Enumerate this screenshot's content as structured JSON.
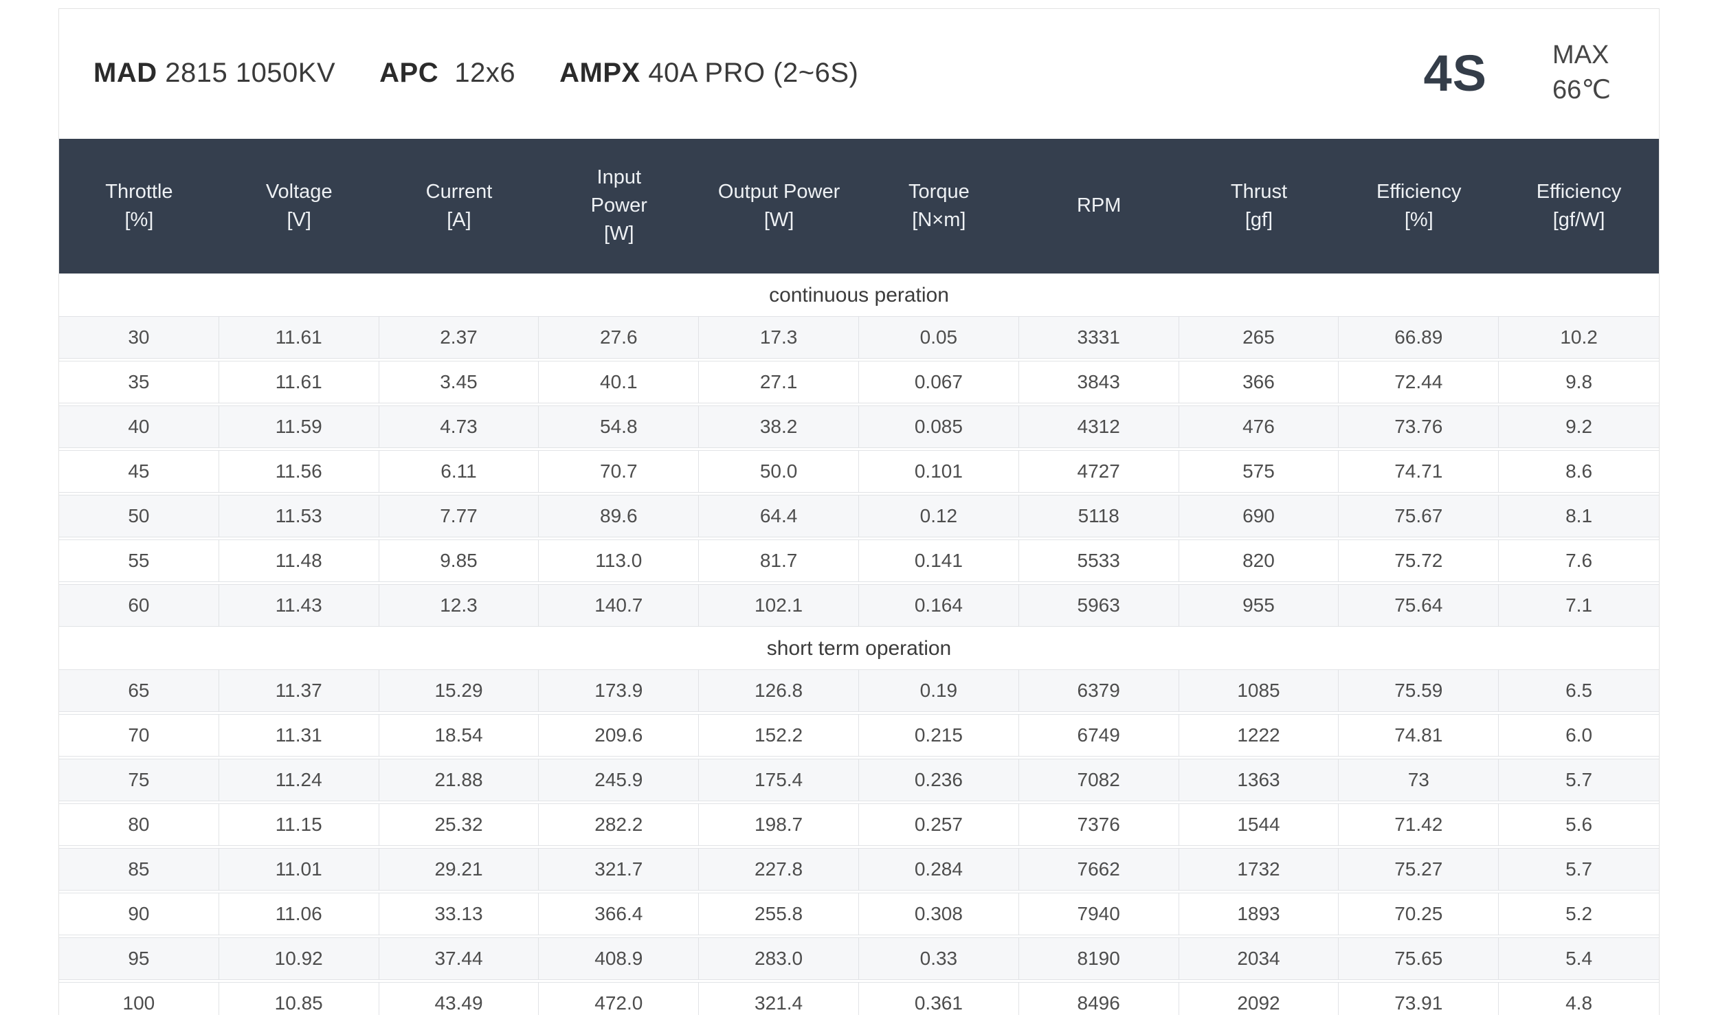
{
  "header": {
    "motor_brand": "MAD",
    "motor_model": "2815 1050KV",
    "prop_brand": "APC",
    "prop_model": "12x6",
    "esc_brand": "AMPX",
    "esc_model": "40A PRO (2~6S)",
    "battery": "4S",
    "max_label": "MAX",
    "max_temp": "66℃"
  },
  "table": {
    "columns": [
      {
        "label": "Throttle",
        "unit": "[%]"
      },
      {
        "label": "Voltage",
        "unit": "[V]"
      },
      {
        "label": "Current",
        "unit": "[A]"
      },
      {
        "label": "Input Power",
        "unit": "[W]"
      },
      {
        "label": "Output Power",
        "unit": "[W]"
      },
      {
        "label": "Torque",
        "unit": "[N×m]"
      },
      {
        "label": "RPM",
        "unit": ""
      },
      {
        "label": "Thrust",
        "unit": "[gf]"
      },
      {
        "label": "Efficiency",
        "unit": "[%]"
      },
      {
        "label": "Efficiency",
        "unit": "[gf/W]"
      }
    ]
  },
  "colors": {
    "table_header_bg": "#353f4e",
    "stripe_row_bg": "#f6f7f9",
    "border": "#e1e3e6"
  },
  "chart_data": {
    "type": "table",
    "title": "MAD 2815 1050KV / APC 12x6 / AMPX 40A PRO (2~6S) / 4S / MAX 66℃",
    "column_headers": [
      "Throttle [%]",
      "Voltage [V]",
      "Current [A]",
      "Input Power [W]",
      "Output Power [W]",
      "Torque [N×m]",
      "RPM",
      "Thrust [gf]",
      "Efficiency [%]",
      "Efficiency [gf/W]"
    ],
    "sections": [
      {
        "label": "continuous peration",
        "rows": [
          [
            "30",
            "11.61",
            "2.37",
            "27.6",
            "17.3",
            "0.05",
            "3331",
            "265",
            "66.89",
            "10.2"
          ],
          [
            "35",
            "11.61",
            "3.45",
            "40.1",
            "27.1",
            "0.067",
            "3843",
            "366",
            "72.44",
            "9.8"
          ],
          [
            "40",
            "11.59",
            "4.73",
            "54.8",
            "38.2",
            "0.085",
            "4312",
            "476",
            "73.76",
            "9.2"
          ],
          [
            "45",
            "11.56",
            "6.11",
            "70.7",
            "50.0",
            "0.101",
            "4727",
            "575",
            "74.71",
            "8.6"
          ],
          [
            "50",
            "11.53",
            "7.77",
            "89.6",
            "64.4",
            "0.12",
            "5118",
            "690",
            "75.67",
            "8.1"
          ],
          [
            "55",
            "11.48",
            "9.85",
            "113.0",
            "81.7",
            "0.141",
            "5533",
            "820",
            "75.72",
            "7.6"
          ],
          [
            "60",
            "11.43",
            "12.3",
            "140.7",
            "102.1",
            "0.164",
            "5963",
            "955",
            "75.64",
            "7.1"
          ]
        ]
      },
      {
        "label": "short term operation",
        "rows": [
          [
            "65",
            "11.37",
            "15.29",
            "173.9",
            "126.8",
            "0.19",
            "6379",
            "1085",
            "75.59",
            "6.5"
          ],
          [
            "70",
            "11.31",
            "18.54",
            "209.6",
            "152.2",
            "0.215",
            "6749",
            "1222",
            "74.81",
            "6.0"
          ],
          [
            "75",
            "11.24",
            "21.88",
            "245.9",
            "175.4",
            "0.236",
            "7082",
            "1363",
            "73",
            "5.7"
          ],
          [
            "80",
            "11.15",
            "25.32",
            "282.2",
            "198.7",
            "0.257",
            "7376",
            "1544",
            "71.42",
            "5.6"
          ],
          [
            "85",
            "11.01",
            "29.21",
            "321.7",
            "227.8",
            "0.284",
            "7662",
            "1732",
            "75.27",
            "5.7"
          ],
          [
            "90",
            "11.06",
            "33.13",
            "366.4",
            "255.8",
            "0.308",
            "7940",
            "1893",
            "70.25",
            "5.2"
          ],
          [
            "95",
            "10.92",
            "37.44",
            "408.9",
            "283.0",
            "0.33",
            "8190",
            "2034",
            "75.65",
            "5.4"
          ],
          [
            "100",
            "10.85",
            "43.49",
            "472.0",
            "321.4",
            "0.361",
            "8496",
            "2092",
            "73.91",
            "4.8"
          ]
        ]
      }
    ]
  }
}
